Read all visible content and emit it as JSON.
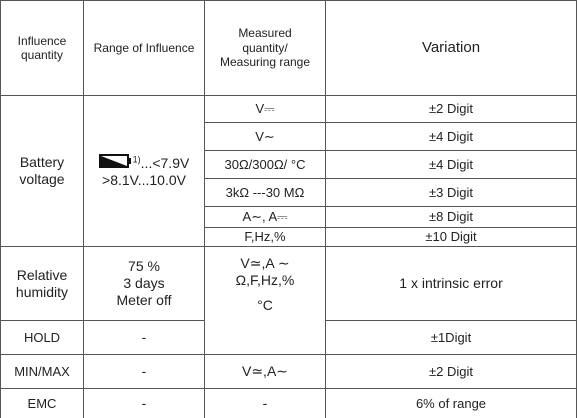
{
  "header": {
    "cells": [
      [
        "Influence",
        "quantity"
      ],
      [
        "Range of Influence"
      ],
      [
        "Measured",
        "quantity/",
        "Measuring range"
      ],
      [
        "Variation"
      ]
    ]
  },
  "battery": {
    "influence": [
      "Battery",
      "voltage"
    ],
    "range": {
      "note": "1)",
      "line1": "...<7.9V",
      "line2": ">8.1V...10.0V"
    },
    "rows": [
      [
        "V⎓",
        "±2 Digit"
      ],
      [
        "V∼",
        "±4 Digit"
      ],
      [
        "30Ω/300Ω/  °C",
        "±4 Digit"
      ],
      [
        "3kΩ ---30  MΩ",
        "±3 Digit"
      ],
      [
        "A∼, A⎓",
        "±8 Digit"
      ],
      [
        "F,Hz,%",
        "±10 Digit"
      ]
    ]
  },
  "humidity": {
    "influence": [
      "Relative",
      "humidity"
    ],
    "range": [
      "75 %",
      "3 days",
      "Meter off"
    ],
    "measured": [
      "V≃,A ∼",
      "Ω,F,Hz,%",
      "°C"
    ],
    "variation": "1 x intrinsic error"
  },
  "hold": {
    "influence": "HOLD",
    "range": "-",
    "variation": "±1Digit"
  },
  "minmax": {
    "influence": "MIN/MAX",
    "range": "-",
    "measured": "V≃,A∼",
    "variation": "±2 Digit"
  },
  "emc": {
    "influence": "EMC",
    "range": "-",
    "measured": "-",
    "variation": "6% of range"
  }
}
